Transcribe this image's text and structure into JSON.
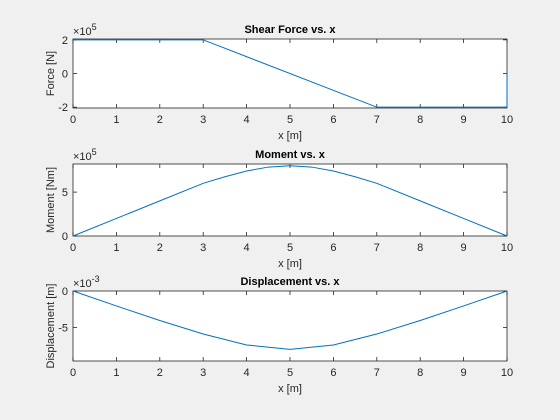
{
  "figure": {
    "background": "#f0f0f0",
    "line_color": "#0072bd"
  },
  "chart_data": [
    {
      "type": "line",
      "title": "Shear Force vs. x",
      "xlabel": "x [m]",
      "ylabel": "Force [N]",
      "exponent": {
        "base": "×10",
        "power": "5"
      },
      "xlim": [
        0,
        10
      ],
      "ylim": [
        -2.05,
        2.05
      ],
      "xticks": [
        0,
        1,
        2,
        3,
        4,
        5,
        6,
        7,
        8,
        9,
        10
      ],
      "xtick_labels": [
        "0",
        "1",
        "2",
        "3",
        "4",
        "5",
        "6",
        "7",
        "8",
        "9",
        "10"
      ],
      "yticks": [
        -2,
        0,
        2
      ],
      "ytick_labels": [
        "-2",
        "0",
        "2"
      ],
      "series": [
        {
          "x": [
            0,
            3,
            7,
            10,
            10
          ],
          "y": [
            2,
            2,
            -2,
            -2,
            0
          ]
        }
      ]
    },
    {
      "type": "line",
      "title": "Moment vs. x",
      "xlabel": "x [m]",
      "ylabel": "Moment [Nm]",
      "exponent": {
        "base": "×10",
        "power": "5"
      },
      "xlim": [
        0,
        10
      ],
      "ylim": [
        0,
        8.2
      ],
      "xticks": [
        0,
        1,
        2,
        3,
        4,
        5,
        6,
        7,
        8,
        9,
        10
      ],
      "xtick_labels": [
        "0",
        "1",
        "2",
        "3",
        "4",
        "5",
        "6",
        "7",
        "8",
        "9",
        "10"
      ],
      "yticks": [
        0,
        5
      ],
      "ytick_labels": [
        "0",
        "5"
      ],
      "series": [
        {
          "x": [
            0,
            1,
            2,
            3,
            3.5,
            4,
            4.5,
            5,
            5.5,
            6,
            6.5,
            7,
            8,
            9,
            10
          ],
          "y": [
            0,
            2,
            4,
            6,
            6.75,
            7.4,
            7.85,
            8,
            7.85,
            7.4,
            6.75,
            6,
            4,
            2,
            0
          ]
        }
      ]
    },
    {
      "type": "line",
      "title": "Displacement vs. x",
      "xlabel": "x [m]",
      "ylabel": "Displacement [m]",
      "exponent": {
        "base": "×10",
        "power": "-3"
      },
      "xlim": [
        0,
        10
      ],
      "ylim": [
        -9.6,
        0
      ],
      "xticks": [
        0,
        1,
        2,
        3,
        4,
        5,
        6,
        7,
        8,
        9,
        10
      ],
      "xtick_labels": [
        "0",
        "1",
        "2",
        "3",
        "4",
        "5",
        "6",
        "7",
        "8",
        "9",
        "10"
      ],
      "yticks": [
        -5,
        0
      ],
      "ytick_labels": [
        "-5",
        "0"
      ],
      "series": [
        {
          "x": [
            0,
            1,
            2,
            3,
            4,
            5,
            6,
            7,
            8,
            9,
            10
          ],
          "y": [
            0,
            -2.05,
            -4.05,
            -5.9,
            -7.4,
            -8.0,
            -7.4,
            -5.9,
            -4.05,
            -2.05,
            0
          ]
        }
      ]
    }
  ]
}
